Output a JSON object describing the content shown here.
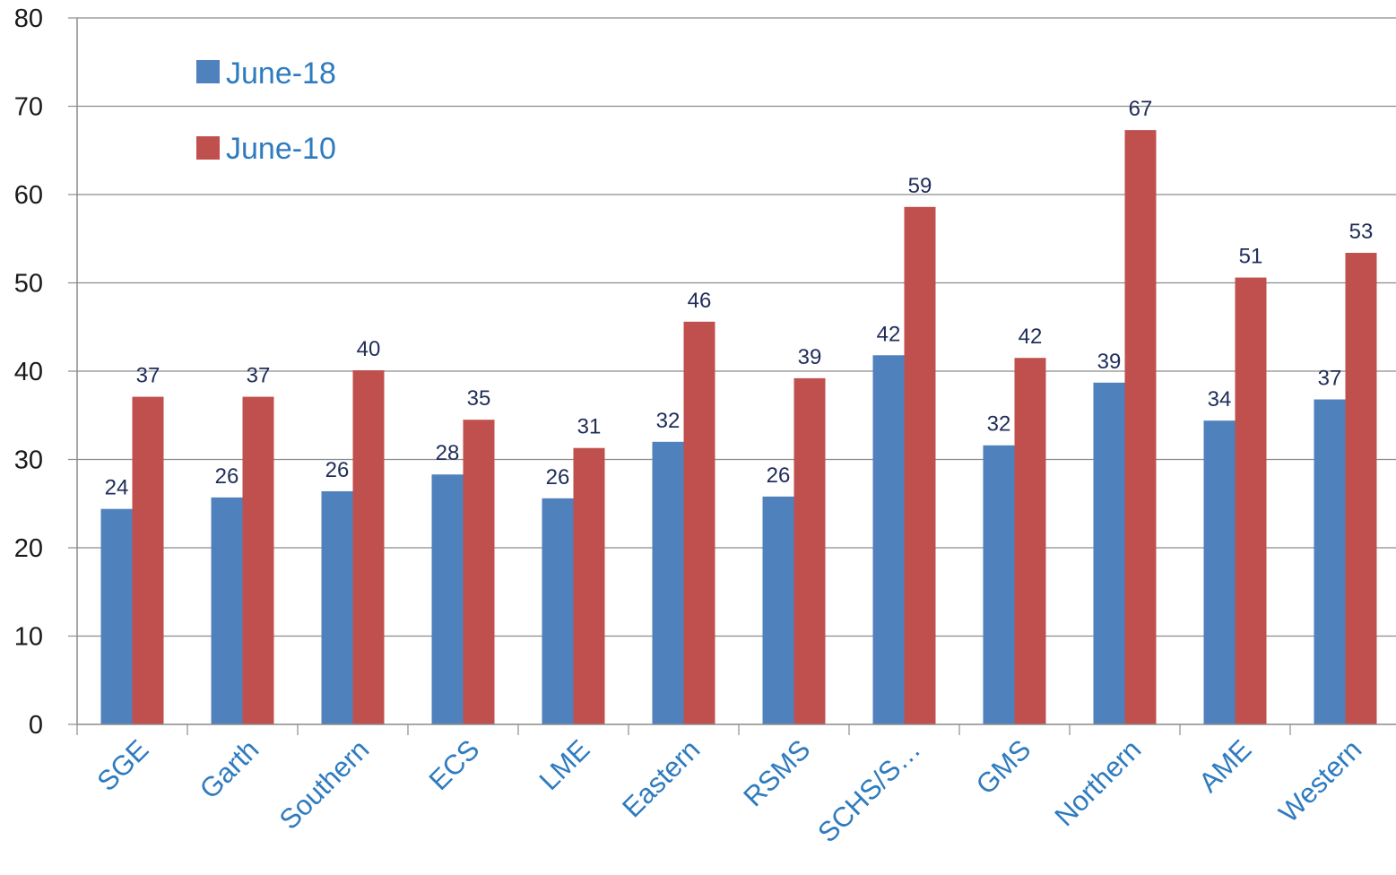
{
  "chart_data": {
    "type": "bar",
    "categories": [
      "SGE",
      "Garth",
      "Southern",
      "ECS",
      "LME",
      "Eastern",
      "RSMS",
      "SCHS/S…",
      "GMS",
      "Northern",
      "AME",
      "Western"
    ],
    "series": [
      {
        "name": "June-18",
        "values": [
          24.4,
          25.7,
          26.4,
          28.3,
          25.6,
          32.0,
          25.8,
          41.8,
          31.6,
          38.7,
          34.4,
          36.8
        ],
        "labels": [
          "24",
          "26",
          "26",
          "28",
          "26",
          "32",
          "26",
          "42",
          "32",
          "39",
          "34",
          "37"
        ],
        "color": "#4f81bd"
      },
      {
        "name": "June-10",
        "values": [
          37.1,
          37.1,
          40.1,
          34.5,
          31.3,
          45.6,
          39.2,
          58.6,
          41.5,
          67.3,
          50.6,
          53.4
        ],
        "labels": [
          "37",
          "37",
          "40",
          "35",
          "31",
          "46",
          "39",
          "59",
          "42",
          "67",
          "51",
          "53"
        ],
        "color": "#c0504d"
      }
    ],
    "ylim": [
      0,
      80
    ],
    "yticks": [
      "0",
      "10",
      "20",
      "30",
      "40",
      "50",
      "60",
      "70",
      "80"
    ],
    "grid": true,
    "legend_position": "top-left",
    "title": "",
    "xlabel": "",
    "ylabel": ""
  }
}
